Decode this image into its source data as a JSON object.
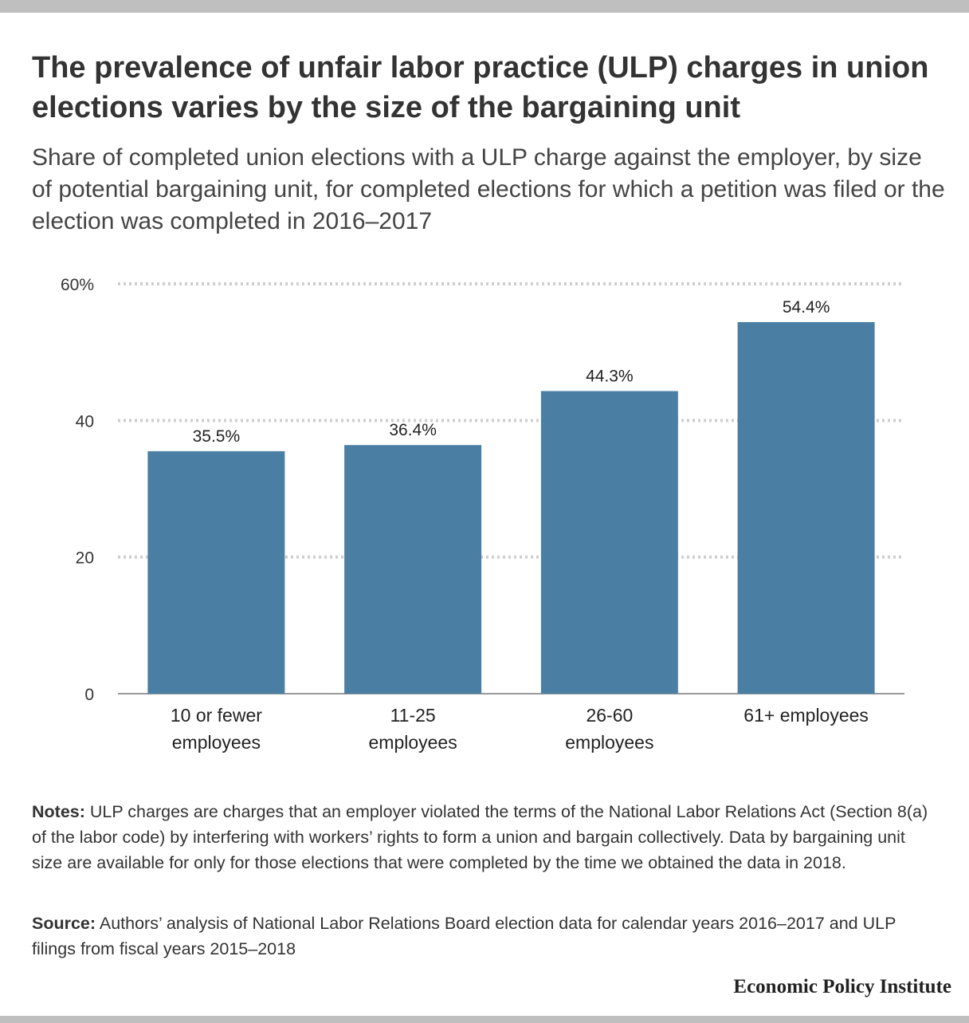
{
  "header": {
    "title": "The prevalence of unfair labor practice (ULP) charges in union elections varies by the size of the bargaining unit",
    "subtitle": "Share of completed union elections with a ULP charge against the employer, by size of potential bargaining unit, for completed elections for which a petition was filed or the election was completed in 2016–2017"
  },
  "chart_data": {
    "type": "bar",
    "categories": [
      [
        "10 or fewer",
        "employees"
      ],
      [
        "11-25",
        "employees"
      ],
      [
        "26-60",
        "employees"
      ],
      [
        "61+ employees"
      ]
    ],
    "values": [
      35.5,
      36.4,
      44.3,
      54.4
    ],
    "value_labels": [
      "35.5%",
      "36.4%",
      "44.3%",
      "54.4%"
    ],
    "yticks": [
      0,
      20,
      40,
      60
    ],
    "ytick_labels": [
      "0",
      "20",
      "40",
      "60%"
    ],
    "ylim": [
      0,
      60
    ],
    "grid": true,
    "bar_color": "#4a7fa3",
    "grid_color": "#cfcfcf"
  },
  "notes": {
    "label": "Notes:",
    "text": " ULP charges are charges that an employer violated the terms of the National Labor Relations Act (Section 8(a) of the labor code) by interfering with workers’ rights to form a union and bargain collectively. Data by bargaining unit size are available for only for those elections that were completed by the time we obtained the data in 2018."
  },
  "source": {
    "label": "Source:",
    "text": " Authors’ analysis of National Labor Relations Board election data for calendar years 2016–2017 and ULP filings from fiscal years 2015–2018"
  },
  "footer": {
    "brand": "Economic Policy Institute"
  }
}
